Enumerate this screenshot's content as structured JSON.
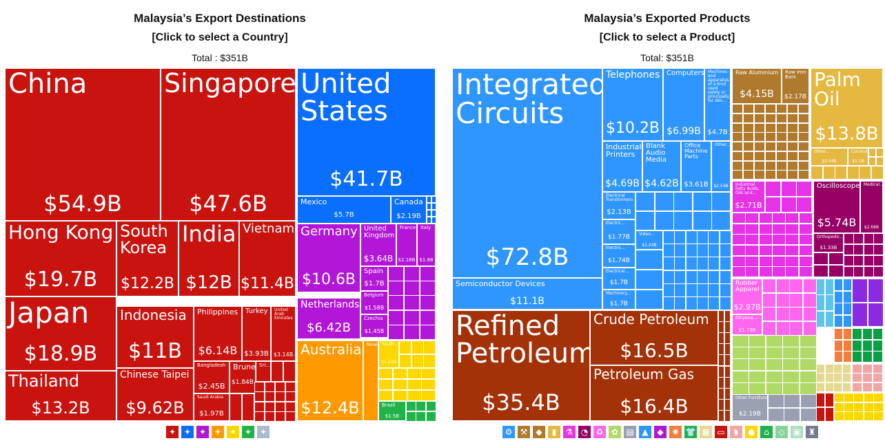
{
  "left": {
    "title": "Malaysia’s Export Destinations",
    "subtitle": "[Click to select a Country]",
    "total": "Total : $351B"
  },
  "right": {
    "title": "Malaysia’s Exported Products",
    "subtitle": "[Click to select a Product]",
    "total": "Total: $351B"
  },
  "colors": {
    "asia": "#c8130f",
    "north_america": "#0a6eff",
    "europe": "#b216d6",
    "oceania": "#ff9900",
    "africa": "#ffd700",
    "south_america": "#21b24a",
    "machines": "#3096ff",
    "mineral": "#a33208",
    "metals": "#b07a2e",
    "vegetable_products": "#e5b840",
    "chemicals": "#e633e6",
    "instruments": "#960064",
    "plastics": "#ff66ee",
    "textiles": "#b0d966",
    "misc": "#9aa0b2"
  },
  "chart_data": [
    {
      "type": "treemap",
      "title": "Malaysia’s Export Destinations",
      "total": "$351B",
      "items": [
        {
          "name": "China",
          "value": 54.9,
          "label": "$54.9B",
          "group": "asia"
        },
        {
          "name": "Singapore",
          "value": 47.6,
          "label": "$47.6B",
          "group": "asia"
        },
        {
          "name": "Hong Kong",
          "value": 19.7,
          "label": "$19.7B",
          "group": "asia"
        },
        {
          "name": "Japan",
          "value": 18.9,
          "label": "$18.9B",
          "group": "asia"
        },
        {
          "name": "Thailand",
          "value": 13.2,
          "label": "$13.2B",
          "group": "asia"
        },
        {
          "name": "South Korea",
          "value": 12.2,
          "label": "$12.2B",
          "group": "asia"
        },
        {
          "name": "India",
          "value": 12,
          "label": "$12B",
          "group": "asia"
        },
        {
          "name": "Vietnam",
          "value": 11.4,
          "label": "$11.4B",
          "group": "asia"
        },
        {
          "name": "Indonesia",
          "value": 11,
          "label": "$11B",
          "group": "asia"
        },
        {
          "name": "Chinese Taipei",
          "value": 9.62,
          "label": "$9.62B",
          "group": "asia"
        },
        {
          "name": "Philippines",
          "value": 6.14,
          "label": "$6.14B",
          "group": "asia"
        },
        {
          "name": "Turkey",
          "value": 3.93,
          "label": "$3.93B",
          "group": "asia"
        },
        {
          "name": "United Arab Emirates",
          "value": 3.14,
          "label": "$3.14B",
          "group": "asia"
        },
        {
          "name": "Bangladesh",
          "value": 2.45,
          "label": "$2.45B",
          "group": "asia"
        },
        {
          "name": "Saudi Arabia",
          "value": 1.97,
          "label": "$1.97B",
          "group": "asia"
        },
        {
          "name": "Brunei",
          "value": 1.84,
          "label": "$1.84B",
          "group": "asia"
        },
        {
          "name": "Sri...",
          "value": null,
          "label": "",
          "group": "asia"
        },
        {
          "name": "United States",
          "value": 41.7,
          "label": "$41.7B",
          "group": "north_america"
        },
        {
          "name": "Mexico",
          "value": 5.7,
          "label": "$5.7B",
          "group": "north_america"
        },
        {
          "name": "Canada",
          "value": 2.19,
          "label": "$2.19B",
          "group": "north_america"
        },
        {
          "name": "Germany",
          "value": 10.6,
          "label": "$10.6B",
          "group": "europe"
        },
        {
          "name": "Netherlands",
          "value": 6.42,
          "label": "$6.42B",
          "group": "europe"
        },
        {
          "name": "United Kingdom",
          "value": 3.64,
          "label": "$3.64B",
          "group": "europe"
        },
        {
          "name": "France",
          "value": 2.18,
          "label": "$2.18B",
          "group": "europe"
        },
        {
          "name": "Italy",
          "value": 1.88,
          "label": "$1.88",
          "group": "europe"
        },
        {
          "name": "Spain",
          "value": 1.7,
          "label": "$1.7B",
          "group": "europe"
        },
        {
          "name": "Belgium",
          "value": 1.58,
          "label": "$1.58B",
          "group": "europe"
        },
        {
          "name": "Czechia",
          "value": 1.45,
          "label": "$1.45B",
          "group": "europe"
        },
        {
          "name": "Australia",
          "value": 12.4,
          "label": "$12.4B",
          "group": "oceania"
        },
        {
          "name": "New...",
          "value": null,
          "label": "",
          "group": "oceania"
        },
        {
          "name": "South...",
          "value": 1.23,
          "label": "$1.23B",
          "group": "africa"
        },
        {
          "name": "Brazil",
          "value": 1.5,
          "label": "$1.5B",
          "group": "south_america"
        }
      ]
    },
    {
      "type": "treemap",
      "title": "Malaysia’s Exported Products",
      "total": "$351B",
      "items": [
        {
          "name": "Integrated Circuits",
          "value": 72.8,
          "label": "$72.8B",
          "group": "machines"
        },
        {
          "name": "Semiconductor Devices",
          "value": 11.1,
          "label": "$11.1B",
          "group": "machines"
        },
        {
          "name": "Telephones",
          "value": 10.2,
          "label": "$10.2B",
          "group": "machines"
        },
        {
          "name": "Computers",
          "value": 6.99,
          "label": "$6.99B",
          "group": "machines"
        },
        {
          "name": "Machines and apparatus of a kind used solely or principally for dev...",
          "value": 4.7,
          "label": "$4.7B",
          "group": "machines"
        },
        {
          "name": "Industrial Printers",
          "value": 4.69,
          "label": "$4.69B",
          "group": "machines"
        },
        {
          "name": "Blank Audio Media",
          "value": 4.62,
          "label": "$4.62B",
          "group": "machines"
        },
        {
          "name": "Office Machine Parts",
          "value": 3.61,
          "label": "$3.61B",
          "group": "machines"
        },
        {
          "name": "Other...",
          "value": 2.54,
          "label": "$2.54B",
          "group": "machines"
        },
        {
          "name": "Electrical Transformers",
          "value": 2.13,
          "label": "$2.13B",
          "group": "machines"
        },
        {
          "name": "Electric...",
          "value": 1.77,
          "label": "$1.77B",
          "group": "machines"
        },
        {
          "name": "Electric...",
          "value": 1.74,
          "label": "$1.74B",
          "group": "machines"
        },
        {
          "name": "Electrical...",
          "value": 1.7,
          "label": "$1.7B",
          "group": "machines"
        },
        {
          "name": "Machinery...",
          "value": 1.7,
          "label": "$1.7B",
          "group": "machines"
        },
        {
          "name": "Video...",
          "value": 1.24,
          "label": "$1.24B",
          "group": "machines"
        },
        {
          "name": "Refined Petroleum",
          "value": 35.4,
          "label": "$35.4B",
          "group": "mineral"
        },
        {
          "name": "Crude Petroleum",
          "value": 16.5,
          "label": "$16.5B",
          "group": "mineral"
        },
        {
          "name": "Petroleum Gas",
          "value": 16.4,
          "label": "$16.4B",
          "group": "mineral"
        },
        {
          "name": "Raw Aluminium",
          "value": 4.15,
          "label": "$4.15B",
          "group": "metals"
        },
        {
          "name": "Raw Iron Bars",
          "value": 2.17,
          "label": "$2.17B",
          "group": "metals"
        },
        {
          "name": "Palm Oil",
          "value": 13.8,
          "label": "$13.8B",
          "group": "vegetable_products"
        },
        {
          "name": "Other...",
          "value": 1.49,
          "label": "$1.49B",
          "group": "vegetable_products"
        },
        {
          "name": "Coconut...",
          "value": 1.1,
          "label": "$1.1B",
          "group": "vegetable_products"
        },
        {
          "name": "Industrial Fatty Acids, Oils and...",
          "value": 2.71,
          "label": "$2.71B",
          "group": "chemicals"
        },
        {
          "name": "Oscilloscopes",
          "value": 5.74,
          "label": "$5.74B",
          "group": "instruments"
        },
        {
          "name": "Medical...",
          "value": 2.66,
          "label": "$2.66B",
          "group": "instruments"
        },
        {
          "name": "Orthopedic...",
          "value": 1.33,
          "label": "$1.33B",
          "group": "instruments"
        },
        {
          "name": "Rubber Apparel",
          "value": 2.97,
          "label": "$2.97B",
          "group": "plastics"
        },
        {
          "name": "Ethylene...",
          "value": 1.73,
          "label": "$1.73B",
          "group": "plastics"
        },
        {
          "name": "Other Furniture",
          "value": 2.19,
          "label": "$2.19B",
          "group": "misc"
        }
      ]
    }
  ]
}
